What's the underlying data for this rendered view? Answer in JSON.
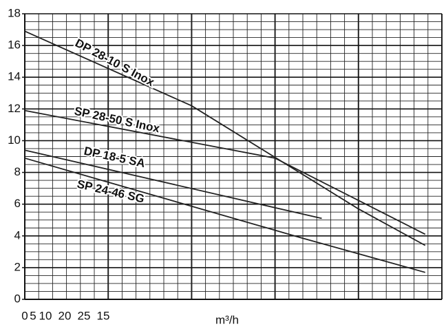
{
  "chart_data": {
    "type": "line",
    "x_label": "m³/h",
    "x_tick_labels": [
      "0",
      "5",
      "10",
      "20",
      "25",
      "15"
    ],
    "xlim": [
      0,
      50
    ],
    "ylim": [
      0,
      18
    ],
    "yticks": [
      0,
      2,
      4,
      6,
      8,
      10,
      12,
      14,
      16,
      18
    ],
    "grid": true,
    "series": [
      {
        "name": "DP 28-10 S Inox",
        "color": "#222",
        "x": [
          0,
          20,
          24,
          40,
          48
        ],
        "values": [
          16.9,
          12.2,
          10.9,
          5.7,
          3.4
        ]
      },
      {
        "name": "SP 28-50 S Inox",
        "color": "#222",
        "x": [
          0,
          30,
          48
        ],
        "values": [
          11.9,
          8.9,
          4.1
        ]
      },
      {
        "name": "DP 18-5 SA",
        "color": "#222",
        "x": [
          0,
          35.6
        ],
        "values": [
          9.4,
          5.1
        ]
      },
      {
        "name": "SP 24-46 SG",
        "color": "#222",
        "x": [
          0,
          33,
          48
        ],
        "values": [
          8.9,
          3.9,
          1.7
        ]
      }
    ]
  }
}
